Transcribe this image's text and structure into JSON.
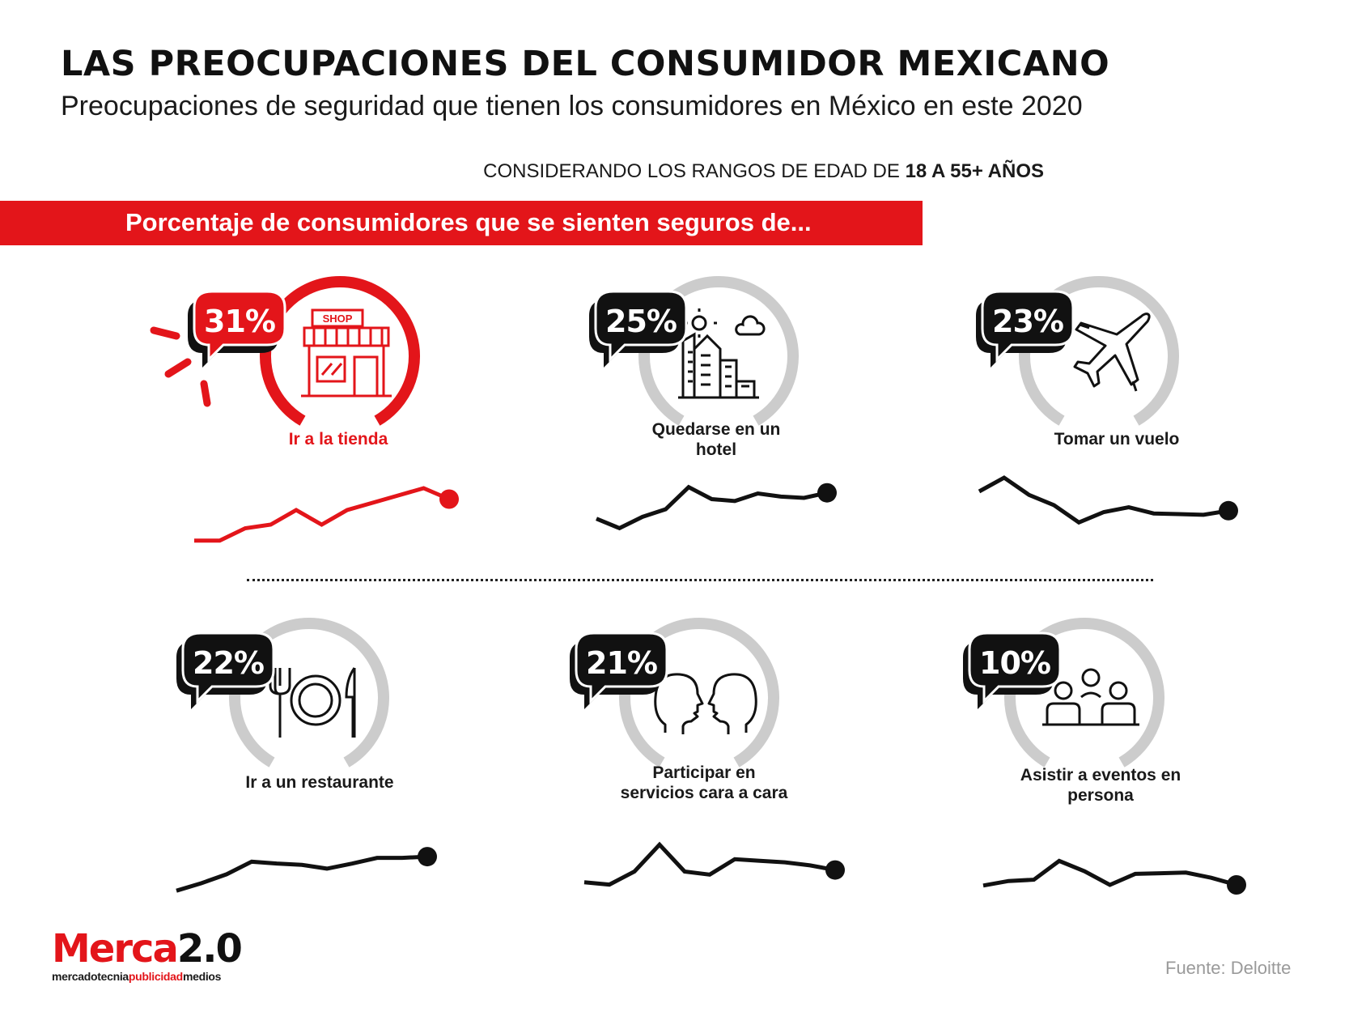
{
  "header": {
    "title": "LAS PREOCUPACIONES DEL CONSUMIDOR MEXICANO",
    "subtitle": "Preocupaciones de seguridad que tienen los consumidores en México en este 2020",
    "age_note_prefix": "CONSIDERANDO LOS RANGOS DE EDAD DE ",
    "age_note_bold": "18 A 55+ AÑOS",
    "banner": "Porcentaje de consumidores que se sienten seguros de..."
  },
  "colors": {
    "accent": "#e3151a",
    "dark": "#111111",
    "ring_gray": "#cccccc"
  },
  "chart_data": [
    {
      "type": "gauge",
      "label": "Ir a la tienda",
      "value_label": "31%",
      "value": 31,
      "icon": "shop-icon",
      "highlight": true,
      "trend": [
        0.8,
        0.8,
        2.5,
        3,
        5,
        3,
        5,
        6,
        7,
        8,
        6.5
      ]
    },
    {
      "type": "gauge",
      "label": "Quedarse en un hotel",
      "value_label": "25%",
      "value": 25,
      "icon": "city-buildings-icon",
      "highlight": false,
      "trend": [
        3.5,
        2,
        3.8,
        5,
        8.5,
        6.6,
        6.3,
        7.5,
        7,
        6.8,
        7.6
      ]
    },
    {
      "type": "gauge",
      "label": "Tomar un vuelo",
      "value_label": "23%",
      "value": 23,
      "icon": "airplane-icon",
      "highlight": false,
      "trend": [
        8,
        10,
        7.5,
        6,
        3.5,
        5,
        5.7,
        4.8,
        4.7,
        4.6,
        5.2
      ]
    },
    {
      "type": "gauge",
      "label": "Ir a un restaurante",
      "value_label": "22%",
      "value": 22,
      "icon": "plate-cutlery-icon",
      "highlight": false,
      "trend": [
        1,
        2.2,
        3.6,
        5.6,
        5.3,
        5.1,
        4.5,
        5.3,
        6.2,
        6.2,
        6.4
      ]
    },
    {
      "type": "gauge",
      "label": "Participar en servicios cara a cara",
      "value_label": "21%",
      "value": 21,
      "icon": "face-to-face-icon",
      "highlight": false,
      "trend": [
        1.6,
        1.3,
        3,
        6.5,
        3,
        2.6,
        4.6,
        4.4,
        4.2,
        3.8,
        3.2
      ]
    },
    {
      "type": "gauge",
      "label": "Asistir a eventos en persona",
      "value_label": "10%",
      "value": 10,
      "icon": "audience-icon",
      "highlight": false,
      "trend": [
        1.4,
        2.1,
        2.3,
        5.2,
        3.6,
        1.5,
        3.2,
        3.3,
        3.4,
        2.6,
        1.5
      ]
    }
  ],
  "footer": {
    "logo_main_red": "Merca",
    "logo_main_dark": "2.0",
    "logo_sub_1": "mercadotecnia",
    "logo_sub_2": "publicidad",
    "logo_sub_3": "medios",
    "source": "Fuente:  Deloitte"
  }
}
